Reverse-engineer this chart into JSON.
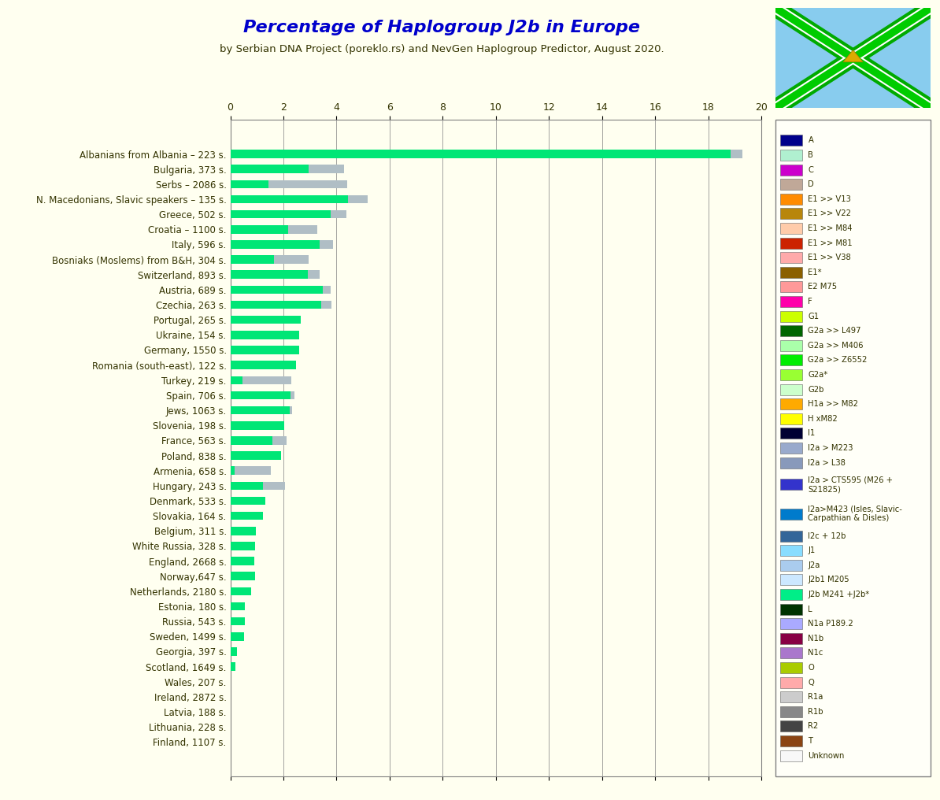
{
  "title": "Percentage of Haplogroup J2b in Europe",
  "subtitle": "by Serbian DNA Project (poreklo.rs) and NevGen Haplogroup Predictor, August 2020.",
  "background_color": "#fffff0",
  "plot_background_color": "#fffff0",
  "countries": [
    "Albanians from Albania – 223 s.",
    "Bulgaria, 373 s.",
    "Serbs – 2086 s.",
    "N. Macedonians, Slavic speakers – 135 s.",
    "Greece, 502 s.",
    "Croatia – 1100 s.",
    "Italy, 596 s.",
    "Bosniaks (Moslems) from B&H, 304 s.",
    "Switzerland, 893 s.",
    "Austria, 689 s.",
    "Czechia, 263 s.",
    "Portugal, 265 s.",
    "Ukraine, 154 s.",
    "Germany, 1550 s.",
    "Romania (south-east), 122 s.",
    "Turkey, 219 s.",
    "Spain, 706 s.",
    "Jews, 1063 s.",
    "Slovenia, 198 s.",
    "France, 563 s.",
    "Poland, 838 s.",
    "Armenia, 658 s.",
    "Hungary, 243 s.",
    "Denmark, 533 s.",
    "Slovakia, 164 s.",
    "Belgium, 311 s.",
    "White Russia, 328 s.",
    "England, 2668 s.",
    "Norway,647 s.",
    "Netherlands, 2180 s.",
    "Estonia, 180 s.",
    "Russia, 543 s.",
    "Sweden, 1499 s.",
    "Georgia, 397 s.",
    "Scotland, 1649 s.",
    "Wales, 207 s.",
    "Ireland, 2872 s.",
    "Latvia, 188 s.",
    "Lithuania, 228 s.",
    "Finland, 1107 s."
  ],
  "j2b_green": [
    18.83,
    2.95,
    1.44,
    4.44,
    3.78,
    2.18,
    3.36,
    1.64,
    2.92,
    3.48,
    3.42,
    2.64,
    2.6,
    2.58,
    2.46,
    0.46,
    2.27,
    2.25,
    2.02,
    1.6,
    1.91,
    0.15,
    1.23,
    1.31,
    1.22,
    0.97,
    0.92,
    0.9,
    0.93,
    0.78,
    0.56,
    0.55,
    0.53,
    0.25,
    0.18,
    0.0,
    0.0,
    0.0,
    0.0,
    0.0
  ],
  "j2b1_light": [
    0.45,
    1.34,
    2.97,
    0.74,
    0.6,
    1.09,
    0.5,
    1.32,
    0.45,
    0.29,
    0.38,
    0.0,
    0.0,
    0.0,
    0.0,
    1.83,
    0.14,
    0.09,
    0.0,
    0.53,
    0.0,
    1.37,
    0.82,
    0.0,
    0.0,
    0.0,
    0.0,
    0.0,
    0.0,
    0.0,
    0.0,
    0.0,
    0.0,
    0.0,
    0.0,
    0.0,
    0.0,
    0.0,
    0.0,
    0.0
  ],
  "green_color": "#00e676",
  "light_blue_color": "#b0bec5",
  "xlim": [
    0,
    20
  ],
  "xticks": [
    0,
    2,
    4,
    6,
    8,
    10,
    12,
    14,
    16,
    18,
    20
  ],
  "legend_items": [
    {
      "label": "A",
      "color": "#00008b"
    },
    {
      "label": "B",
      "color": "#b0f0d0"
    },
    {
      "label": "C",
      "color": "#cc00cc"
    },
    {
      "label": "D",
      "color": "#c0a898"
    },
    {
      "label": "E1 >> V13",
      "color": "#ff8c00"
    },
    {
      "label": "E1 >> V22",
      "color": "#b8860b"
    },
    {
      "label": "E1 >> M84",
      "color": "#ffccaa"
    },
    {
      "label": "E1 >> M81",
      "color": "#cc2200"
    },
    {
      "label": "E1 >> V38",
      "color": "#ffaaaa"
    },
    {
      "label": "E1*",
      "color": "#8b6000"
    },
    {
      "label": "E2 M75",
      "color": "#ff9999"
    },
    {
      "label": "F",
      "color": "#ff00aa"
    },
    {
      "label": "G1",
      "color": "#ccff00"
    },
    {
      "label": "G2a >> L497",
      "color": "#006600"
    },
    {
      "label": "G2a >> M406",
      "color": "#aaffaa"
    },
    {
      "label": "G2a >> Z6552",
      "color": "#00ee00"
    },
    {
      "label": "G2a*",
      "color": "#99ff33"
    },
    {
      "label": "G2b",
      "color": "#ccffcc"
    },
    {
      "label": "H1a >> M82",
      "color": "#ffaa00"
    },
    {
      "label": "H xM82",
      "color": "#ffff00"
    },
    {
      "label": "I1",
      "color": "#000033"
    },
    {
      "label": "I2a > M223",
      "color": "#99aacc"
    },
    {
      "label": "I2a > L38",
      "color": "#8899bb"
    },
    {
      "label": "I2a > CTS595 (M26 +\nS21825)",
      "color": "#3333cc"
    },
    {
      "label": "I2a>M423 (Isles, Slavic-\nCarpathian & Disles)",
      "color": "#007bcc"
    },
    {
      "label": "I2c + 12b",
      "color": "#336699"
    },
    {
      "label": "J1",
      "color": "#88ddff"
    },
    {
      "label": "J2a",
      "color": "#aaccee"
    },
    {
      "label": "J2b1 M205",
      "color": "#cce8ff"
    },
    {
      "label": "J2b M241 +J2b*",
      "color": "#00ee88"
    },
    {
      "label": "L",
      "color": "#003300"
    },
    {
      "label": "N1a P189.2",
      "color": "#aaaaff"
    },
    {
      "label": "N1b",
      "color": "#880044"
    },
    {
      "label": "N1c",
      "color": "#aa77cc"
    },
    {
      "label": "O",
      "color": "#aacc00"
    },
    {
      "label": "Q",
      "color": "#ffaaaa"
    },
    {
      "label": "R1a",
      "color": "#cccccc"
    },
    {
      "label": "R1b",
      "color": "#888888"
    },
    {
      "label": "R2",
      "color": "#444444"
    },
    {
      "label": "T",
      "color": "#8b4513"
    },
    {
      "label": "Unknown",
      "color": "#f8f8f8"
    }
  ],
  "title_color": "#0000cc",
  "subtitle_color": "#333300",
  "label_color": "#333300",
  "tick_color": "#333300"
}
